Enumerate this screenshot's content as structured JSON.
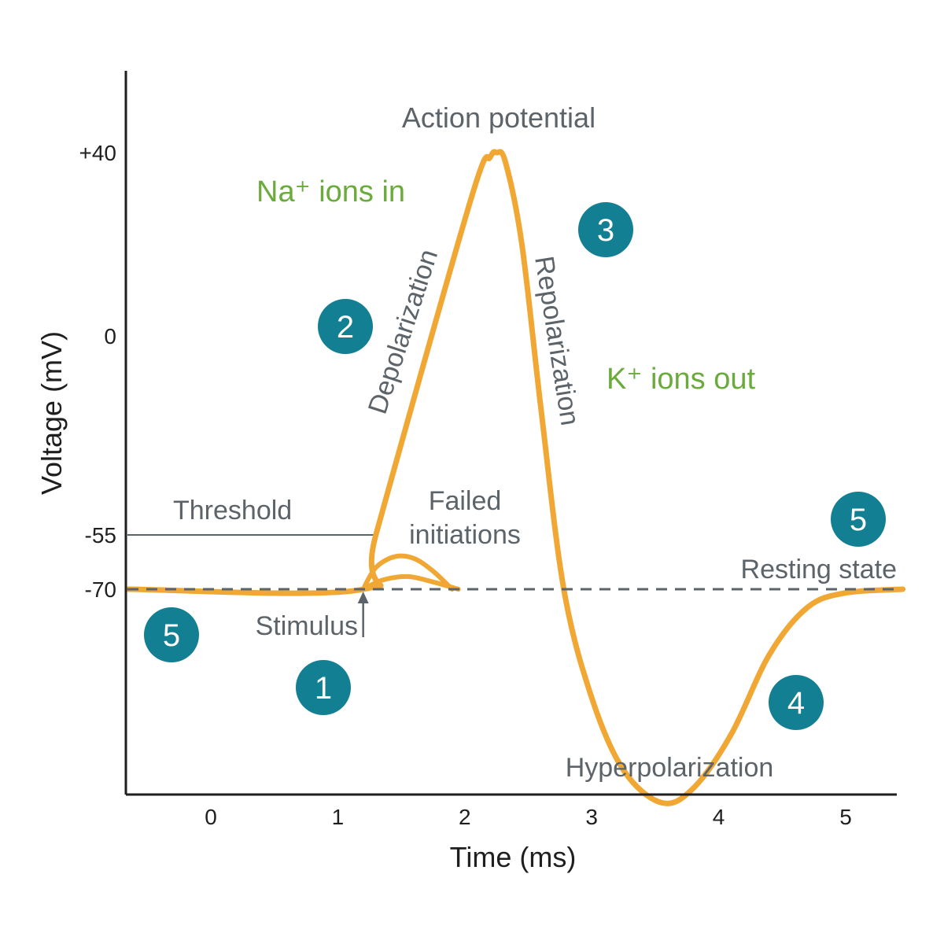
{
  "chart_data": {
    "type": "line",
    "xlabel": "Time (ms)",
    "ylabel": "Voltage (mV)",
    "x_ticks": [
      "0",
      "1",
      "2",
      "3",
      "4",
      "5"
    ],
    "y_ticks": [
      {
        "label": "+40",
        "value": 40
      },
      {
        "label": "0",
        "value": 0
      },
      {
        "label": "-55",
        "value": -55
      },
      {
        "label": "-70",
        "value": -70
      }
    ],
    "xlim": [
      -0.65,
      5.45
    ],
    "series": [
      {
        "role": "action-potential",
        "points": [
          [
            -0.65,
            -70
          ],
          [
            1.2,
            -70
          ],
          [
            1.3,
            -55
          ],
          [
            2.05,
            30
          ],
          [
            2.2,
            39
          ],
          [
            2.25,
            40
          ],
          [
            2.32,
            38
          ],
          [
            2.45,
            20
          ],
          [
            2.6,
            -20
          ],
          [
            2.78,
            -70
          ],
          [
            3.0,
            -100
          ],
          [
            3.25,
            -120
          ],
          [
            3.55,
            -129
          ],
          [
            3.8,
            -125
          ],
          [
            4.1,
            -110
          ],
          [
            4.4,
            -88
          ],
          [
            4.7,
            -75
          ],
          [
            5.0,
            -71
          ],
          [
            5.45,
            -70
          ]
        ]
      },
      {
        "role": "failed-initiation-upper",
        "points": [
          [
            1.2,
            -70
          ],
          [
            1.3,
            -64
          ],
          [
            1.45,
            -61
          ],
          [
            1.6,
            -61.5
          ],
          [
            1.75,
            -65
          ],
          [
            1.9,
            -70
          ]
        ]
      },
      {
        "role": "failed-initiation-lower",
        "points": [
          [
            1.2,
            -70
          ],
          [
            1.35,
            -67.5
          ],
          [
            1.55,
            -66.5
          ],
          [
            1.75,
            -68
          ],
          [
            1.95,
            -70
          ]
        ]
      }
    ],
    "resting_value": -70,
    "threshold_value": -55,
    "stimulus_x": 1.2,
    "annotations": {
      "action_potential": "Action potential",
      "na_in": "Na⁺ ions in",
      "depolarization": "Depolarization",
      "repolarization": "Repolarization",
      "k_out": "K⁺ ions out",
      "threshold": "Threshold",
      "failed_line1": "Failed",
      "failed_line2": "initiations",
      "resting_state": "Resting state",
      "stimulus": "Stimulus",
      "hyperpolarization": "Hyperpolarization"
    },
    "badges": [
      "1",
      "2",
      "3",
      "4",
      "5",
      "5"
    ],
    "colors": {
      "curve": "#f0a733",
      "badge": "#127f92",
      "green_text": "#6aab3c",
      "gray_text": "#5c6369",
      "axis": "#1f1f1f",
      "dashed": "#5c6369"
    },
    "grid": false
  }
}
